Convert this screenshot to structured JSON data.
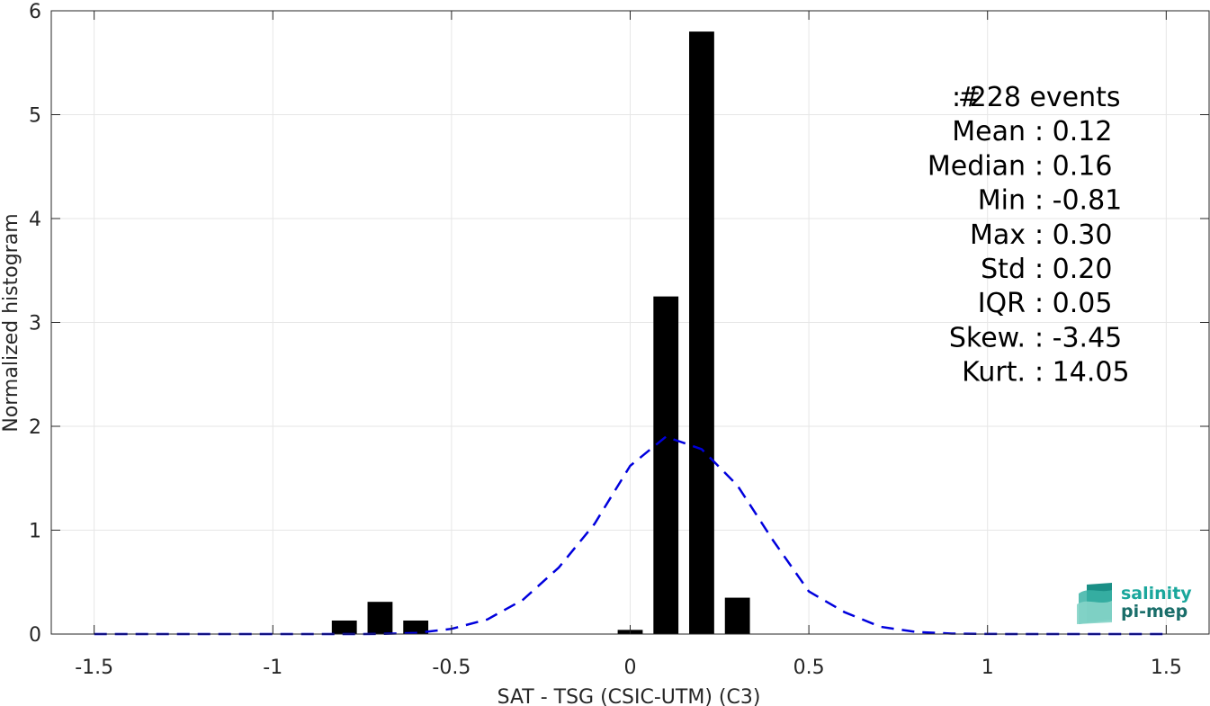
{
  "chart_data": {
    "type": "bar",
    "xlabel": "SAT - TSG (CSIC-UTM) (C3)",
    "ylabel": "Normalized histogram",
    "xlim": [
      -1.62,
      1.62
    ],
    "ylim": [
      0,
      6
    ],
    "xticks": [
      -1.5,
      -1,
      -0.5,
      0,
      0.5,
      1,
      1.5
    ],
    "xtick_labels": [
      "-1.5",
      "-1",
      "-0.5",
      "0",
      "0.5",
      "1",
      "1.5"
    ],
    "yticks": [
      0,
      1,
      2,
      3,
      4,
      5,
      6
    ],
    "ytick_labels": [
      "0",
      "1",
      "2",
      "3",
      "4",
      "5",
      "6"
    ],
    "grid": true,
    "bar_width": 0.07,
    "bars": [
      {
        "x": -0.8,
        "value": 0.13
      },
      {
        "x": -0.7,
        "value": 0.31
      },
      {
        "x": -0.6,
        "value": 0.13
      },
      {
        "x": 0.0,
        "value": 0.04
      },
      {
        "x": 0.1,
        "value": 3.25
      },
      {
        "x": 0.2,
        "value": 5.8
      },
      {
        "x": 0.3,
        "value": 0.35
      }
    ],
    "bar_color": "#000000",
    "fit_curve": {
      "style": "dashed",
      "color": "#0000dd",
      "x": [
        -1.5,
        -1.4,
        -1.3,
        -1.2,
        -1.1,
        -1.0,
        -0.9,
        -0.8,
        -0.7,
        -0.6,
        -0.5,
        -0.4,
        -0.3,
        -0.2,
        -0.1,
        0.0,
        0.1,
        0.2,
        0.3,
        0.4,
        0.5,
        0.6,
        0.7,
        0.8,
        0.9,
        1.0,
        1.1,
        1.2,
        1.3,
        1.4,
        1.5
      ],
      "y": [
        0,
        0,
        0,
        0,
        0,
        0,
        0,
        0,
        0.001,
        0.01,
        0.05,
        0.14,
        0.33,
        0.64,
        1.06,
        1.62,
        1.9,
        1.78,
        1.43,
        0.9,
        0.41,
        0.21,
        0.07,
        0.02,
        0.004,
        0.001,
        0,
        0,
        0,
        0,
        0
      ]
    },
    "stats": [
      {
        "label": "#",
        "value": ": 228 events"
      },
      {
        "label": "Mean",
        "value": ": 0.12"
      },
      {
        "label": "Median",
        "value": ": 0.16"
      },
      {
        "label": "Min",
        "value": ": -0.81"
      },
      {
        "label": "Max",
        "value": ": 0.30"
      },
      {
        "label": "Std",
        "value": ": 0.20"
      },
      {
        "label": "IQR",
        "value": ": 0.05"
      },
      {
        "label": "Skew.",
        "value": ": -3.45"
      },
      {
        "label": "Kurt.",
        "value": ": 14.05"
      }
    ],
    "logo": {
      "line1": "salinity",
      "line2": "pi-mep",
      "color1": "#1aa79c",
      "color2": "#1a6e6a"
    }
  }
}
